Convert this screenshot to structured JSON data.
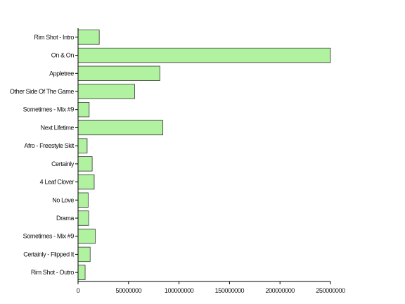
{
  "chart_data": {
    "type": "bar",
    "orientation": "horizontal",
    "title": "",
    "xlabel": "",
    "ylabel": "",
    "categories": [
      "Rim Shot - Intro",
      "On & On",
      "Appletree",
      "Other Side Of The Game",
      "Sometimes - Mix #9",
      "Next Lifetime",
      "Afro - Freestyle Skit",
      "Certainly",
      "4 Leaf Clover",
      "No Love",
      "Drama",
      "Sometimes - Mix #9",
      "Certainly - Flipped It",
      "Rim Shot - Outro"
    ],
    "values": [
      21000000,
      250000000,
      81000000,
      56000000,
      11000000,
      84000000,
      9000000,
      14000000,
      16000000,
      10000000,
      10500000,
      17000000,
      12000000,
      7000000
    ],
    "xlim": [
      0,
      250000000
    ],
    "xticks": [
      0,
      50000000,
      100000000,
      150000000,
      200000000,
      250000000
    ],
    "xtick_labels": [
      "0",
      "50000000",
      "100000000",
      "150000000",
      "200000000",
      "250000000"
    ],
    "grid": false,
    "bar_color": "#b0f2a0",
    "edge_color": "#333333"
  }
}
